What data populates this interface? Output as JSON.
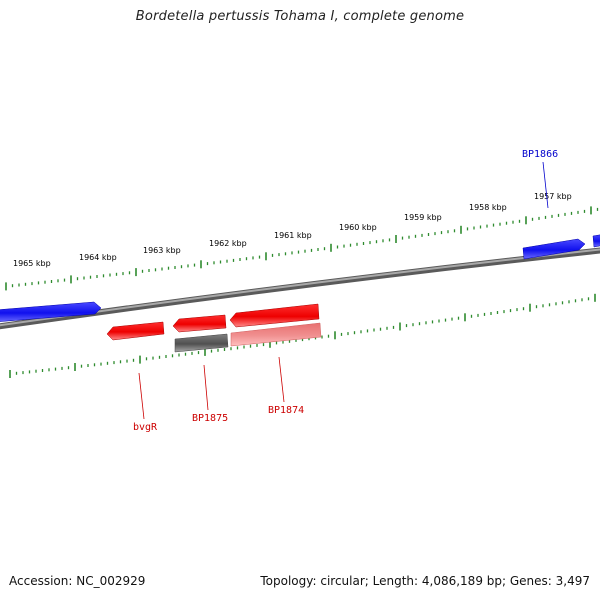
{
  "title": "Bordetella pertussis Tohama I, complete genome",
  "footer": {
    "accession": "Accession: NC_002929",
    "summary": "Topology: circular; Length: 4,086,189 bp; Genes: 3,497"
  },
  "scale_labels": [
    "1965 kbp",
    "1964 kbp",
    "1963 kbp",
    "1962 kbp",
    "1961 kbp",
    "1960 kbp",
    "1959 kbp",
    "1958 kbp",
    "1957 kbp"
  ],
  "gene_labels": {
    "bp1866": "BP1866",
    "bvgr": "bvgR",
    "bp1875": "BP1875",
    "bp1874": "BP1874"
  },
  "colors": {
    "forward_gene": "#1a1aff",
    "reverse_gene": "#ff0000",
    "reverse_gene_light": "#f08080",
    "pseudo_gene": "#606060",
    "backbone": "#808080",
    "ticks": "#2e8b2e",
    "label_blue": "#0000cc",
    "label_red": "#cc0000"
  }
}
